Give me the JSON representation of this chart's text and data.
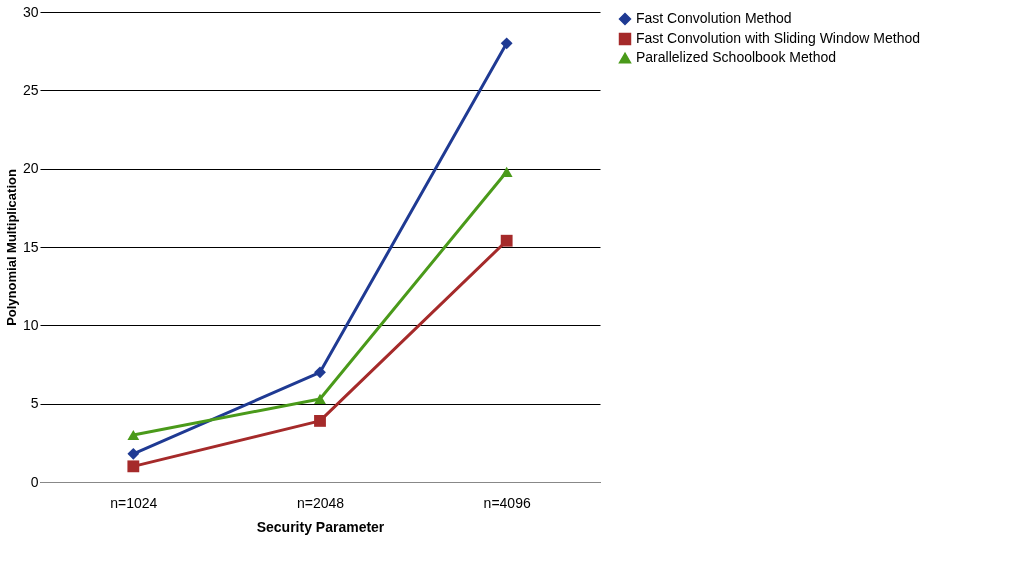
{
  "chart_data": {
    "type": "line",
    "xlabel": "Security Parameter",
    "ylabel": "Polynomial Multiplication",
    "categories": [
      "n=1024",
      "n=2048",
      "n=4096"
    ],
    "series": [
      {
        "name": "Fast Convolution Method",
        "color": "#1f3a93",
        "marker": "diamond",
        "values": [
          1.8,
          7,
          28
        ]
      },
      {
        "name": "Fast Convolution with Sliding Window Method",
        "color": "#a52a2a",
        "marker": "square",
        "values": [
          1,
          3.9,
          15.4
        ]
      },
      {
        "name": "Parallelized Schoolbook Method",
        "color": "#4a9a1a",
        "marker": "triangle",
        "values": [
          3,
          5.3,
          19.8
        ]
      }
    ],
    "ylim": [
      0,
      30
    ],
    "yticks": [
      0,
      5,
      10,
      15,
      20,
      25,
      30
    ],
    "grid": "y",
    "legend": "right",
    "line_style": "solid"
  }
}
